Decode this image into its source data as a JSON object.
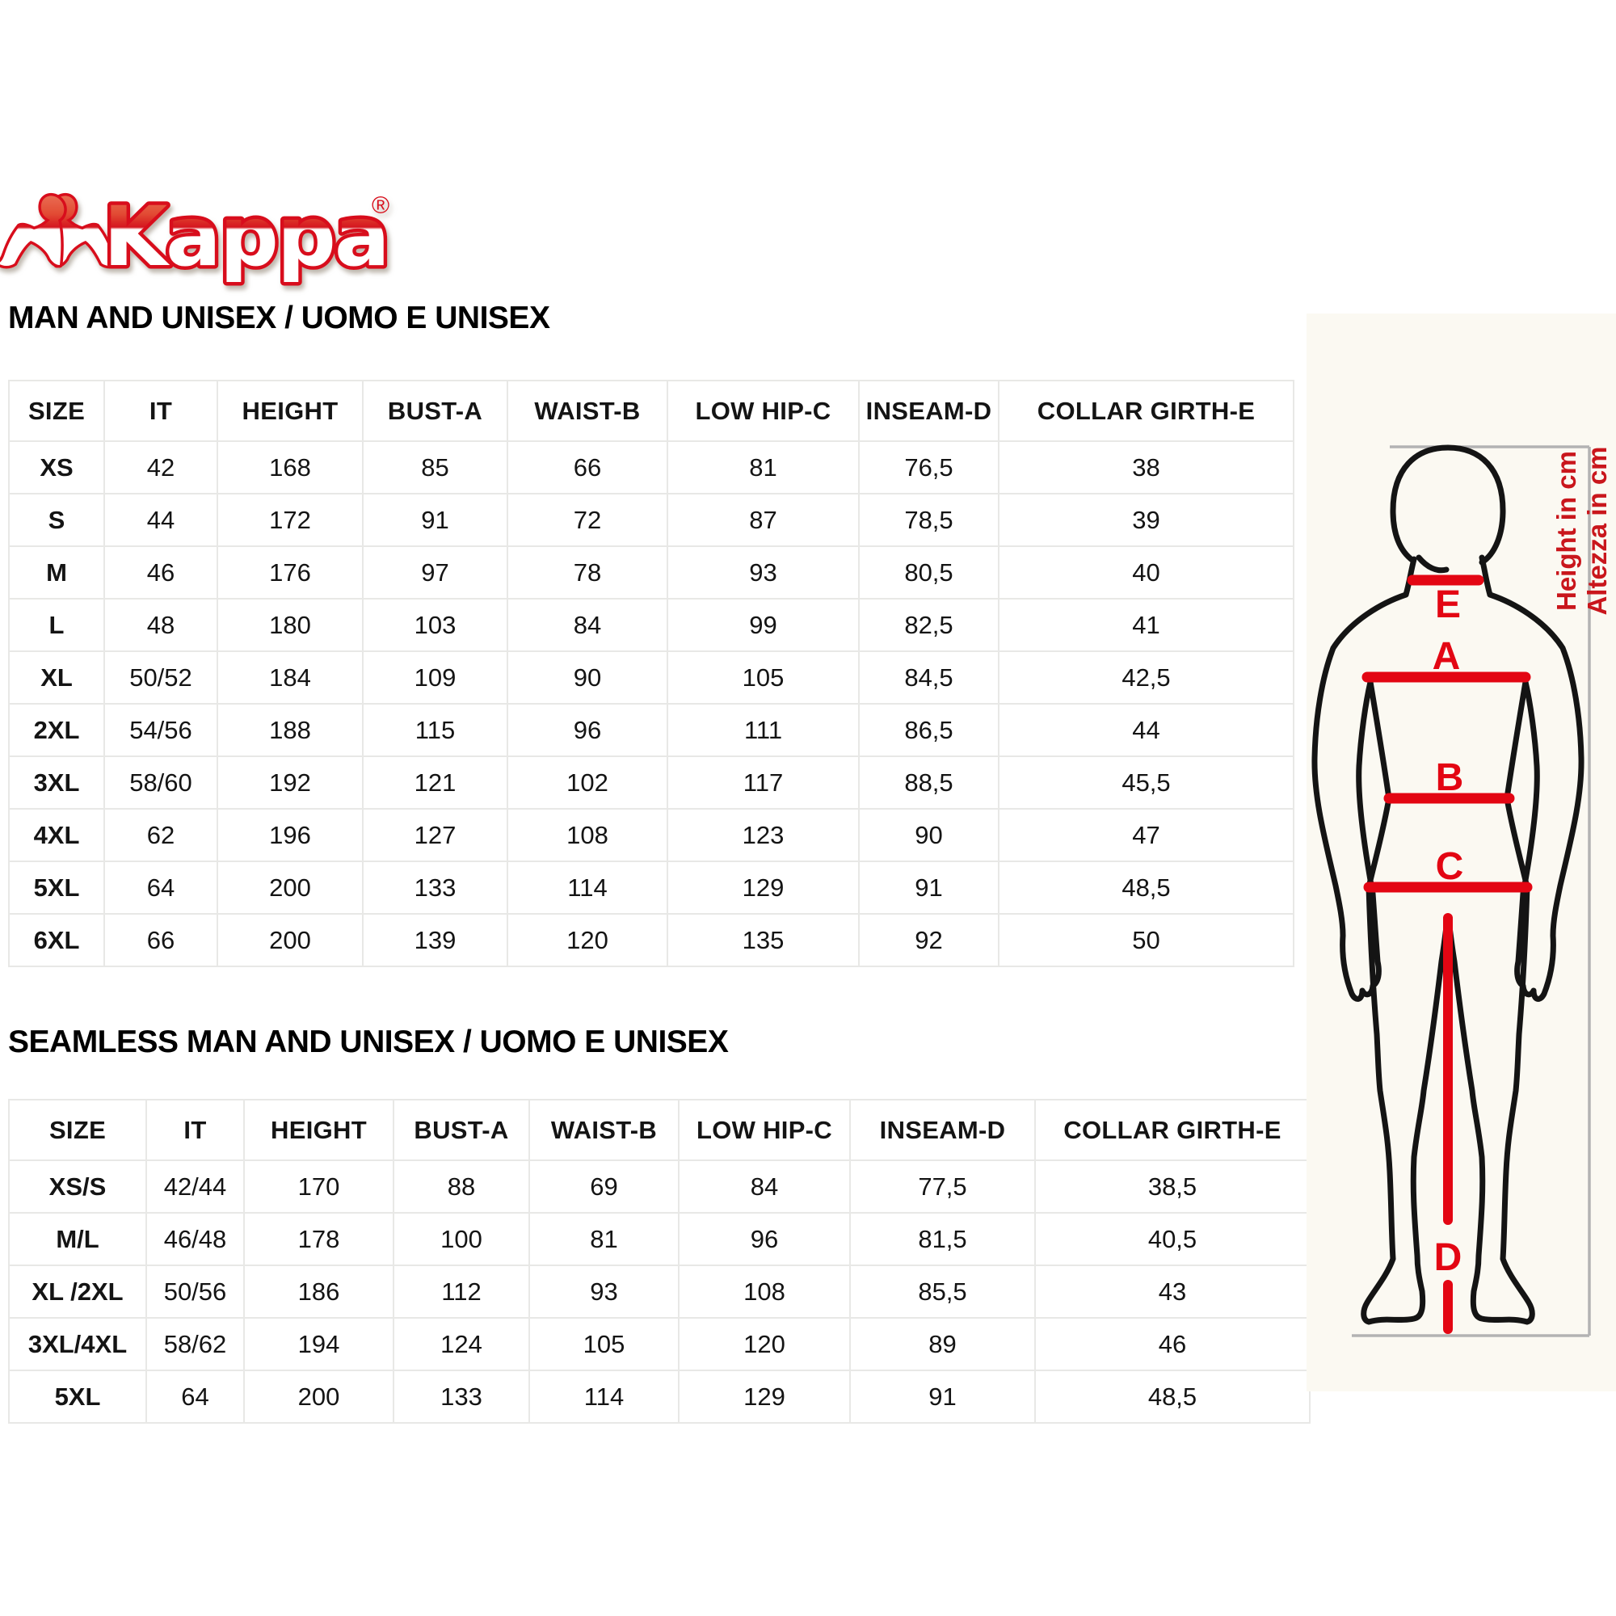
{
  "logo": {
    "brand": "Kappa",
    "registered": "®"
  },
  "colors": {
    "brand_red": "#d8101c",
    "line_red": "#e30613",
    "note_red": "#c9161c",
    "text_black": "#141414",
    "grid_gray": "#e8e8e6",
    "bracket_gray": "#b3b3b3"
  },
  "section_man": {
    "title": "MAN AND UNISEX / UOMO E UNISEX",
    "table": {
      "columns": [
        "SIZE",
        "IT",
        "HEIGHT",
        "BUST-A",
        "WAIST-B",
        "LOW HIP-C",
        "INSEAM-D",
        "COLLAR GIRTH-E"
      ],
      "rows": [
        [
          "XS",
          "42",
          "168",
          "85",
          "66",
          "81",
          "76,5",
          "38"
        ],
        [
          "S",
          "44",
          "172",
          "91",
          "72",
          "87",
          "78,5",
          "39"
        ],
        [
          "M",
          "46",
          "176",
          "97",
          "78",
          "93",
          "80,5",
          "40"
        ],
        [
          "L",
          "48",
          "180",
          "103",
          "84",
          "99",
          "82,5",
          "41"
        ],
        [
          "XL",
          "50/52",
          "184",
          "109",
          "90",
          "105",
          "84,5",
          "42,5"
        ],
        [
          "2XL",
          "54/56",
          "188",
          "115",
          "96",
          "111",
          "86,5",
          "44"
        ],
        [
          "3XL",
          "58/60",
          "192",
          "121",
          "102",
          "117",
          "88,5",
          "45,5"
        ],
        [
          "4XL",
          "62",
          "196",
          "127",
          "108",
          "123",
          "90",
          "47"
        ],
        [
          "5XL",
          "64",
          "200",
          "133",
          "114",
          "129",
          "91",
          "48,5"
        ],
        [
          "6XL",
          "66",
          "200",
          "139",
          "120",
          "135",
          "92",
          "50"
        ]
      ]
    }
  },
  "section_seamless": {
    "title": "SEAMLESS MAN AND UNISEX / UOMO E UNISEX",
    "table": {
      "columns": [
        "SIZE",
        "IT",
        "HEIGHT",
        "BUST-A",
        "WAIST-B",
        "LOW HIP-C",
        "INSEAM-D",
        "COLLAR GIRTH-E"
      ],
      "rows": [
        [
          "XS/S",
          "42/44",
          "170",
          "88",
          "69",
          "84",
          "77,5",
          "38,5"
        ],
        [
          "M/L",
          "46/48",
          "178",
          "100",
          "81",
          "96",
          "81,5",
          "40,5"
        ],
        [
          "XL /2XL",
          "50/56",
          "186",
          "112",
          "93",
          "108",
          "85,5",
          "43"
        ],
        [
          "3XL/4XL",
          "58/62",
          "194",
          "124",
          "105",
          "120",
          "89",
          "46"
        ],
        [
          "5XL",
          "64",
          "200",
          "133",
          "114",
          "129",
          "91",
          "48,5"
        ]
      ]
    }
  },
  "diagram": {
    "labels": {
      "collar": "E",
      "bust": "A",
      "waist": "B",
      "hip": "C",
      "inseam": "D"
    },
    "height_note_en": "Height in cm",
    "height_note_it": "Altezza in cm"
  }
}
